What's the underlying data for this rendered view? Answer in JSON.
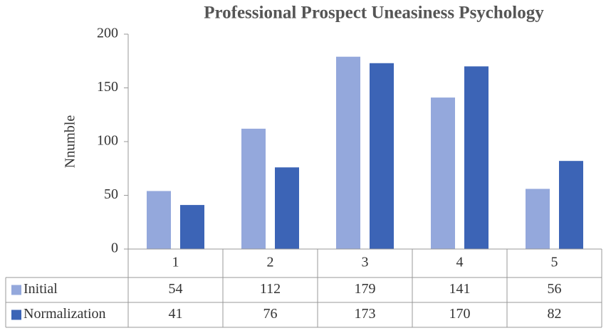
{
  "chart_data": {
    "type": "bar",
    "title": "Professional Prospect Uneasiness Psychology",
    "y_label": "Nnumble",
    "categories": [
      "1",
      "2",
      "3",
      "4",
      "5"
    ],
    "series": [
      {
        "name": "Initial",
        "color": "#94a8dc",
        "values": [
          54,
          112,
          179,
          141,
          56
        ]
      },
      {
        "name": "Normalization",
        "color": "#3c64b6",
        "values": [
          41,
          76,
          173,
          170,
          82
        ]
      }
    ],
    "ylim": [
      0,
      200
    ],
    "yticks": [
      0,
      50,
      100,
      150,
      200
    ],
    "grid": false,
    "data_table": true
  }
}
